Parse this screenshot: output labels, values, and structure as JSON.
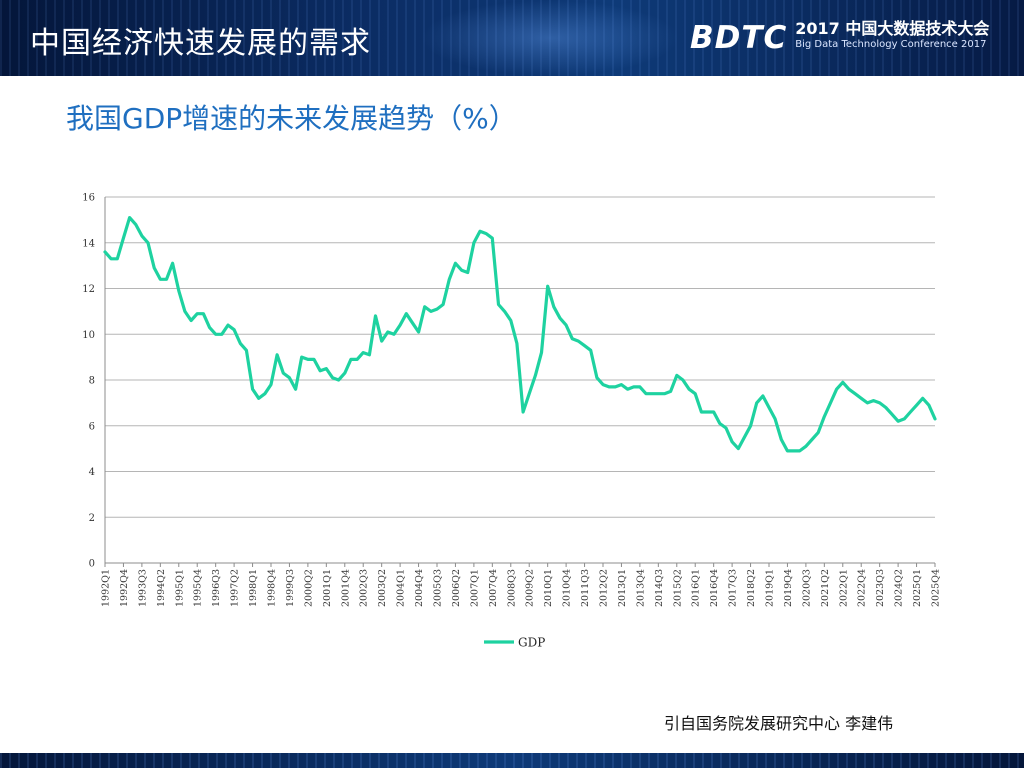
{
  "header": {
    "title": "中国经济快速发展的需求",
    "logo": {
      "mark": "BDTC",
      "line1": "2017 中国大数据技术大会",
      "line2": "Big Data Technology Conference 2017"
    }
  },
  "slide": {
    "chart_title": "我国GDP增速的未来发展趋势（%）",
    "source": "引自国务院发展研究中心  李建伟"
  },
  "colors": {
    "line": "#1ed2a0",
    "title": "#1f6fc0",
    "grid": "#b5b5b5",
    "header_bg": "#0b2c63"
  },
  "chart_data": {
    "type": "line",
    "title": "",
    "xlabel": "",
    "ylabel": "",
    "ylim": [
      0,
      16
    ],
    "yticks": [
      0,
      2,
      4,
      6,
      8,
      10,
      12,
      14,
      16
    ],
    "grid": "horizontal",
    "legend": "bottom",
    "x_tick_labels": [
      "1992Q1",
      "1992Q4",
      "1993Q3",
      "1994Q2",
      "1995Q1",
      "1995Q4",
      "1996Q3",
      "1997Q2",
      "1998Q1",
      "1998Q4",
      "1999Q3",
      "2000Q2",
      "2001Q1",
      "2001Q4",
      "2002Q3",
      "2003Q2",
      "2004Q1",
      "2004Q4",
      "2005Q3",
      "2006Q2",
      "2007Q1",
      "2007Q4",
      "2008Q3",
      "2009Q2",
      "2010Q1",
      "2010Q4",
      "2011Q3",
      "2012Q2",
      "2013Q1",
      "2013Q4",
      "2014Q3",
      "2015Q2",
      "2016Q1",
      "2016Q4",
      "2017Q3",
      "2018Q2",
      "2019Q1",
      "2019Q4",
      "2020Q3",
      "2021Q2",
      "2022Q1",
      "2022Q4",
      "2023Q3",
      "2024Q2",
      "2025Q1",
      "2025Q4"
    ],
    "series": [
      {
        "name": "GDP",
        "start_quarter": "1992Q1",
        "values": [
          13.6,
          13.3,
          13.3,
          14.2,
          15.1,
          14.8,
          14.3,
          14.0,
          12.9,
          12.4,
          12.4,
          13.1,
          11.9,
          11.0,
          10.6,
          10.9,
          10.9,
          10.3,
          10.0,
          10.0,
          10.4,
          10.2,
          9.6,
          9.3,
          7.6,
          7.2,
          7.4,
          7.8,
          9.1,
          8.3,
          8.1,
          7.6,
          9.0,
          8.9,
          8.9,
          8.4,
          8.5,
          8.1,
          8.0,
          8.3,
          8.9,
          8.9,
          9.2,
          9.1,
          10.8,
          9.7,
          10.1,
          10.0,
          10.4,
          10.9,
          10.5,
          10.1,
          11.2,
          11.0,
          11.1,
          11.3,
          12.4,
          13.1,
          12.8,
          12.7,
          14.0,
          14.5,
          14.4,
          14.2,
          11.3,
          11.0,
          10.6,
          9.6,
          6.6,
          7.4,
          8.2,
          9.2,
          12.1,
          11.2,
          10.7,
          10.4,
          9.8,
          9.7,
          9.5,
          9.3,
          8.1,
          7.8,
          7.7,
          7.7,
          7.8,
          7.6,
          7.7,
          7.7,
          7.4,
          7.4,
          7.4,
          7.4,
          7.5,
          8.2,
          8.0,
          7.6,
          7.4,
          6.6,
          6.6,
          6.6,
          6.1,
          5.9,
          5.3,
          5.0,
          5.5,
          6.0,
          7.0,
          7.3,
          6.8,
          6.3,
          5.4,
          4.9,
          4.9,
          4.9,
          5.1,
          5.4,
          5.7,
          6.4,
          7.0,
          7.6,
          7.9,
          7.6,
          7.4,
          7.2,
          7.0,
          7.1,
          7.0,
          6.8,
          6.5,
          6.2,
          6.3,
          6.6,
          6.9,
          7.2,
          6.9,
          6.3
        ]
      }
    ]
  }
}
